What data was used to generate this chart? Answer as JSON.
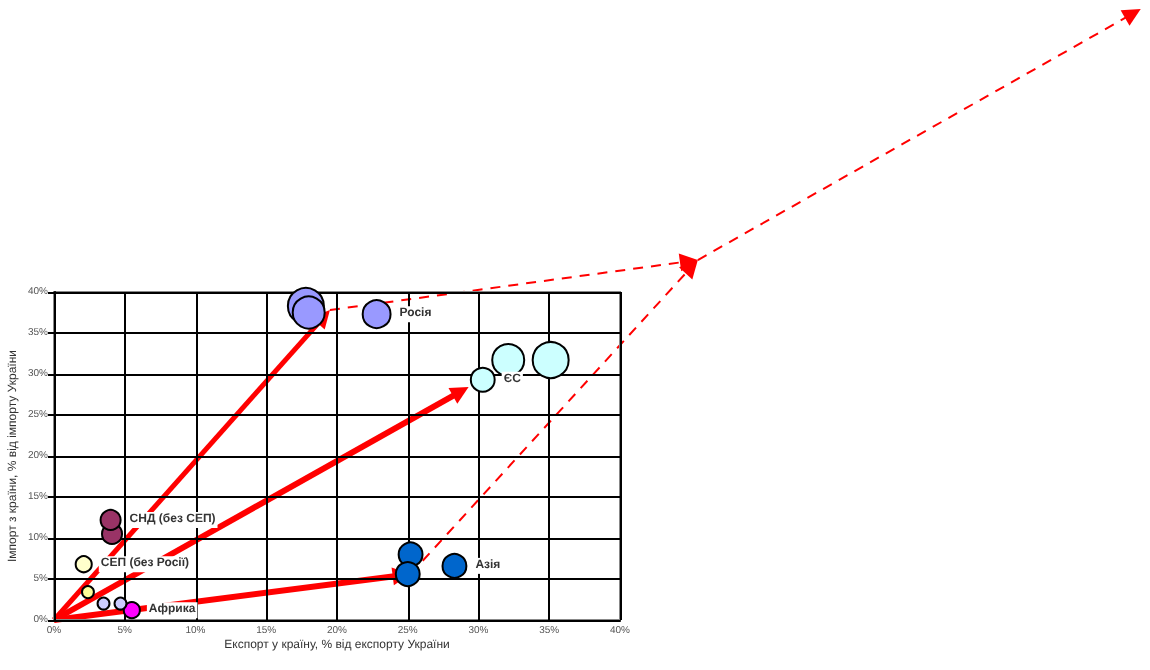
{
  "chart_data": {
    "type": "bubble",
    "xlabel": "Експорт у країну, % від експорту України",
    "ylabel": "Імпорт з країни, % від імпорту України",
    "xlim": [
      0,
      40
    ],
    "ylim": [
      0,
      40
    ],
    "xticks": [
      {
        "value": 0,
        "label": "0%"
      },
      {
        "value": 5,
        "label": "5%"
      },
      {
        "value": 10,
        "label": "10%"
      },
      {
        "value": 15,
        "label": "15%"
      },
      {
        "value": 20,
        "label": "20%"
      },
      {
        "value": 25,
        "label": "25%"
      },
      {
        "value": 30,
        "label": "30%"
      },
      {
        "value": 35,
        "label": "35%"
      },
      {
        "value": 40,
        "label": "40%"
      }
    ],
    "yticks": [
      {
        "value": 0,
        "label": "0%"
      },
      {
        "value": 5,
        "label": "5%"
      },
      {
        "value": 10,
        "label": "10%"
      },
      {
        "value": 15,
        "label": "15%"
      },
      {
        "value": 20,
        "label": "20%"
      },
      {
        "value": 25,
        "label": "25%"
      },
      {
        "value": 30,
        "label": "30%"
      },
      {
        "value": 35,
        "label": "35%"
      },
      {
        "value": 40,
        "label": "40%"
      }
    ],
    "grid": true,
    "legend": false,
    "series": [
      {
        "name": "Росія",
        "color": "#9999ff",
        "x": [
          17.8,
          18.0,
          22.8
        ],
        "values": [
          38.3,
          37.5,
          37.3
        ],
        "sizes": [
          1,
          0.79,
          0.6
        ]
      },
      {
        "name": "ЄС",
        "color": "#ccffff",
        "x": [
          32.1,
          35.1,
          30.3
        ],
        "values": [
          31.7,
          31.7,
          29.3
        ],
        "sizes": [
          0.79,
          1,
          0.44
        ]
      },
      {
        "name": "Азія",
        "color": "#0066cc",
        "x": [
          25.2,
          25.0,
          28.3
        ],
        "values": [
          8.0,
          5.6,
          6.6
        ],
        "sizes": [
          0.44,
          0.44,
          0.44
        ]
      },
      {
        "name": "СНД (без СЕП)",
        "color": "#993366",
        "x": [
          4.1,
          4.0
        ],
        "values": [
          10.5,
          12.2
        ],
        "sizes": [
          0.31,
          0.31
        ]
      },
      {
        "name": "СЕП (без Росії)",
        "color": "#ffffcc",
        "x": [
          2.1
        ],
        "values": [
          6.8
        ],
        "sizes": [
          0.2
        ]
      },
      {
        "name": "Африка",
        "color": "#ff00ff",
        "x": [
          5.5
        ],
        "values": [
          1.2
        ],
        "sizes": [
          0.2
        ]
      },
      {
        "color": "#ffff99",
        "x": [
          2.4
        ],
        "values": [
          3.4
        ],
        "sizes": [
          0.11
        ]
      },
      {
        "color": "#ccccff",
        "x": [
          3.5,
          4.7
        ],
        "values": [
          2.0,
          2.0
        ],
        "sizes": [
          0.11,
          0.11
        ]
      }
    ]
  }
}
